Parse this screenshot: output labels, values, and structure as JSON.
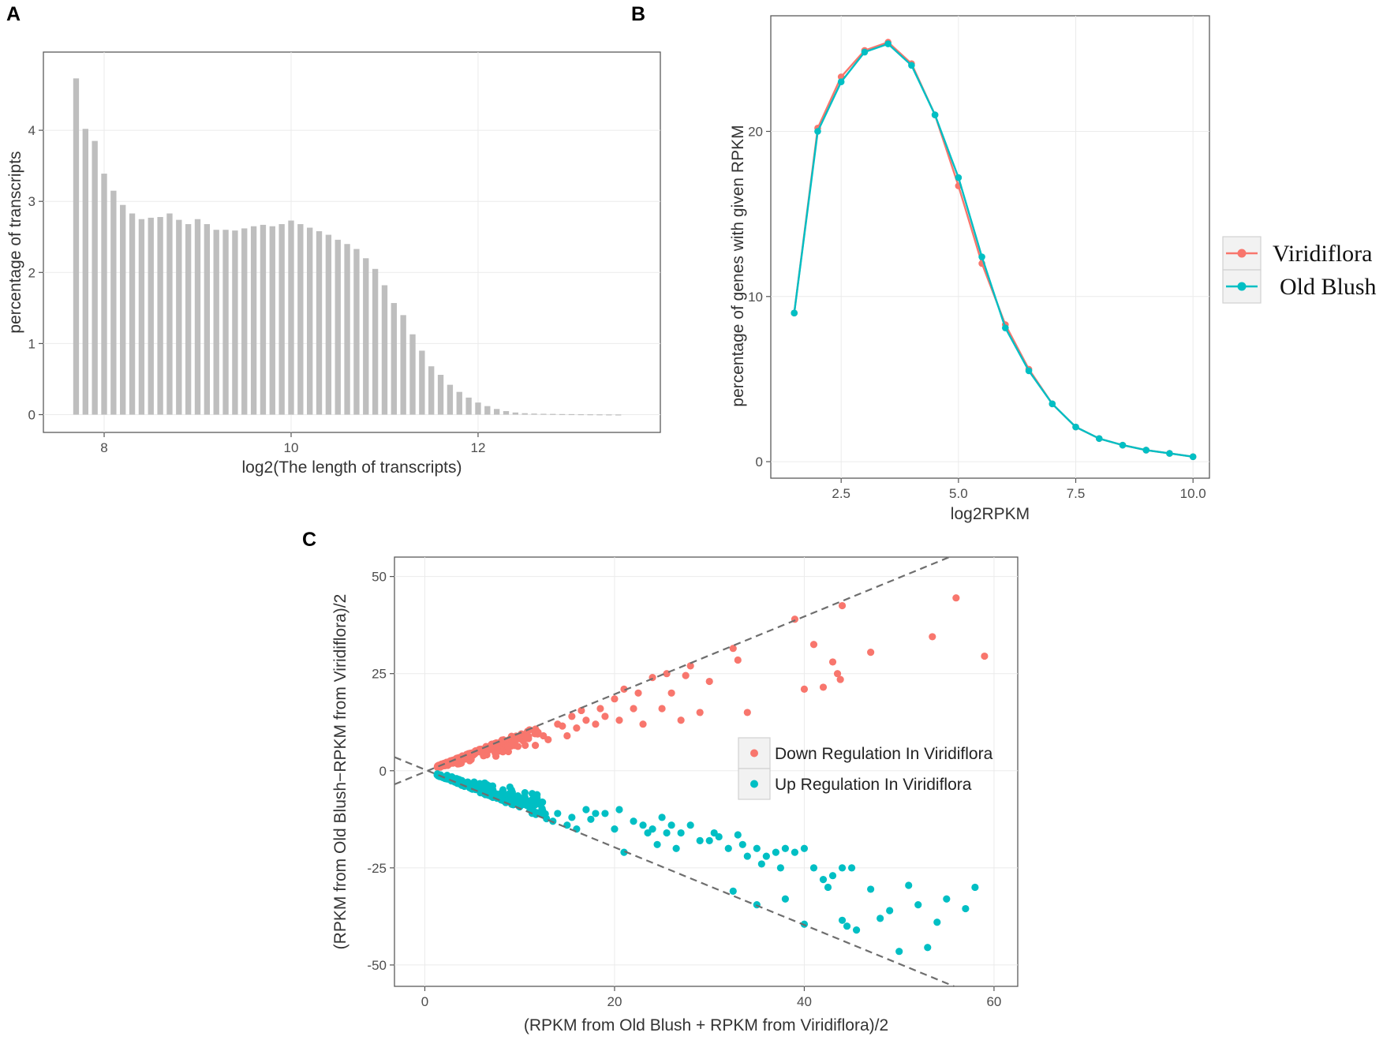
{
  "panels": {
    "a": "A",
    "b": "B",
    "c": "C"
  },
  "chart_data": [
    {
      "panel": "A",
      "type": "bar",
      "xlabel": "log2(The length of transcripts)",
      "ylabel": "percentage of transcripts",
      "xlim": [
        7.35,
        13.95
      ],
      "ylim": [
        -0.25,
        5.1
      ],
      "xticks": [
        8,
        10,
        12
      ],
      "yticks": [
        0,
        1,
        2,
        3,
        4
      ],
      "bar_start": 7.7,
      "bar_step": 0.1,
      "values": [
        4.73,
        4.02,
        3.85,
        3.39,
        3.15,
        2.95,
        2.83,
        2.75,
        2.77,
        2.78,
        2.83,
        2.74,
        2.68,
        2.75,
        2.68,
        2.6,
        2.6,
        2.59,
        2.62,
        2.65,
        2.67,
        2.65,
        2.68,
        2.73,
        2.68,
        2.63,
        2.58,
        2.53,
        2.46,
        2.4,
        2.33,
        2.2,
        2.05,
        1.82,
        1.57,
        1.4,
        1.13,
        0.9,
        0.68,
        0.56,
        0.42,
        0.32,
        0.24,
        0.17,
        0.12,
        0.08,
        0.05,
        0.03,
        0.02,
        0.015,
        0.012,
        0.01,
        0.008,
        0.007,
        0.006,
        0.005,
        0.004,
        0.003,
        0.002
      ]
    },
    {
      "panel": "B",
      "type": "line",
      "xlabel": "log2RPKM",
      "ylabel": "percentage of genes with given RPKM",
      "xlim": [
        1.0,
        10.35
      ],
      "ylim": [
        -1.0,
        27.0
      ],
      "xticks": [
        2.5,
        5.0,
        7.5,
        10.0
      ],
      "xticklabels": [
        "2.5",
        "5.0",
        "7.5",
        "10.0"
      ],
      "yticks": [
        0,
        10,
        20
      ],
      "x": [
        1.5,
        2.0,
        2.5,
        3.0,
        3.5,
        4.0,
        4.5,
        5.0,
        5.5,
        6.0,
        6.5,
        7.0,
        7.5,
        8.0,
        8.5,
        9.0,
        9.5,
        10.0
      ],
      "series": [
        {
          "name": "Viridiflora",
          "color": "#f8766d",
          "values": [
            9.0,
            20.2,
            23.3,
            24.9,
            25.4,
            24.1,
            21.0,
            16.7,
            12.0,
            8.3,
            5.6,
            3.5,
            2.1,
            1.4,
            1.0,
            0.7,
            0.5,
            0.3
          ]
        },
        {
          "name": "Old Blush",
          "color": "#00bfc4",
          "values": [
            9.0,
            20.0,
            23.0,
            24.8,
            25.3,
            24.0,
            21.0,
            17.2,
            12.4,
            8.1,
            5.5,
            3.5,
            2.1,
            1.4,
            1.0,
            0.7,
            0.5,
            0.3
          ]
        }
      ]
    },
    {
      "panel": "C",
      "type": "scatter",
      "xlabel": "(RPKM from Old Blush + RPKM from Viridiflora)/2",
      "ylabel": "(RPKM from Old Blush−RPKM from Viridiflora)/2",
      "xlim": [
        -3.2,
        62.5
      ],
      "ylim": [
        -55.5,
        55.0
      ],
      "xticks": [
        0,
        20,
        40,
        60
      ],
      "yticks": [
        -50,
        -25,
        0,
        25,
        50
      ],
      "reference_lines": [
        {
          "slope": 1,
          "intercept": -0.3,
          "style": "dashed"
        },
        {
          "slope": -1,
          "intercept": 0.3,
          "style": "dashed"
        }
      ],
      "series": [
        {
          "name": "Down Regulation In Viridiflora",
          "color": "#f8766d",
          "cloud": {
            "x_from": 1.3,
            "x_to": 12.0,
            "count": 200,
            "min_ratio": 0.45,
            "max_ratio": 0.97
          },
          "points": [
            [
              12.5,
              9.0
            ],
            [
              13.0,
              8.0
            ],
            [
              14.0,
              12.0
            ],
            [
              14.5,
              11.5
            ],
            [
              15.0,
              9.0
            ],
            [
              15.5,
              14.0
            ],
            [
              16.0,
              11.0
            ],
            [
              16.5,
              15.5
            ],
            [
              17.0,
              13.0
            ],
            [
              18.0,
              12.0
            ],
            [
              18.5,
              16.0
            ],
            [
              19.0,
              14.0
            ],
            [
              20.0,
              18.5
            ],
            [
              20.5,
              13.0
            ],
            [
              21.0,
              21.0
            ],
            [
              22.0,
              16.0
            ],
            [
              22.5,
              20.0
            ],
            [
              23.0,
              12.0
            ],
            [
              24.0,
              24.0
            ],
            [
              25.0,
              16.0
            ],
            [
              25.5,
              25.0
            ],
            [
              26.0,
              20.0
            ],
            [
              27.0,
              13.0
            ],
            [
              27.5,
              24.5
            ],
            [
              28.0,
              27.0
            ],
            [
              29.0,
              15.0
            ],
            [
              30.0,
              23.0
            ],
            [
              32.5,
              31.5
            ],
            [
              33.0,
              28.5
            ],
            [
              34.0,
              15.0
            ],
            [
              39.0,
              39.0
            ],
            [
              40.0,
              21.0
            ],
            [
              41.0,
              32.5
            ],
            [
              42.0,
              21.5
            ],
            [
              43.0,
              28.0
            ],
            [
              43.5,
              25.0
            ],
            [
              44.0,
              42.5
            ],
            [
              43.8,
              23.5
            ],
            [
              47.0,
              30.5
            ],
            [
              53.5,
              34.5
            ],
            [
              56.0,
              44.5
            ],
            [
              59.0,
              29.5
            ]
          ]
        },
        {
          "name": "Up Regulation In Viridiflora",
          "color": "#00bfc4",
          "cloud": {
            "x_from": 1.3,
            "x_to": 13.0,
            "count": 200,
            "min_ratio": 0.45,
            "max_ratio": 0.97
          },
          "points": [
            [
              13.5,
              -13.0
            ],
            [
              14.0,
              -11.0
            ],
            [
              15.0,
              -14.0
            ],
            [
              15.5,
              -12.0
            ],
            [
              16.0,
              -15.0
            ],
            [
              17.0,
              -10.0
            ],
            [
              17.5,
              -12.5
            ],
            [
              18.0,
              -11.0
            ],
            [
              19.0,
              -11.0
            ],
            [
              20.0,
              -15.0
            ],
            [
              20.5,
              -10.0
            ],
            [
              21.0,
              -21.0
            ],
            [
              22.0,
              -13.0
            ],
            [
              23.0,
              -14.0
            ],
            [
              23.5,
              -16.0
            ],
            [
              24.0,
              -15.0
            ],
            [
              24.5,
              -19.0
            ],
            [
              25.0,
              -12.0
            ],
            [
              25.5,
              -16.0
            ],
            [
              26.0,
              -14.0
            ],
            [
              26.5,
              -20.0
            ],
            [
              27.0,
              -16.0
            ],
            [
              28.0,
              -14.0
            ],
            [
              29.0,
              -18.0
            ],
            [
              30.0,
              -18.0
            ],
            [
              30.5,
              -16.0
            ],
            [
              31.0,
              -17.0
            ],
            [
              32.0,
              -20.0
            ],
            [
              33.0,
              -16.5
            ],
            [
              33.5,
              -19.0
            ],
            [
              34.0,
              -22.0
            ],
            [
              35.0,
              -20.0
            ],
            [
              35.5,
              -24.0
            ],
            [
              36.0,
              -22.0
            ],
            [
              37.0,
              -21.0
            ],
            [
              37.5,
              -25.0
            ],
            [
              38.0,
              -20.0
            ],
            [
              39.0,
              -21.0
            ],
            [
              40.0,
              -20.0
            ],
            [
              41.0,
              -25.0
            ],
            [
              42.0,
              -28.0
            ],
            [
              43.0,
              -27.0
            ],
            [
              44.0,
              -25.0
            ],
            [
              45.0,
              -25.0
            ],
            [
              32.5,
              -31.0
            ],
            [
              35.0,
              -34.5
            ],
            [
              38.0,
              -33.0
            ],
            [
              40.0,
              -39.5
            ],
            [
              42.5,
              -30.0
            ],
            [
              44.0,
              -38.5
            ],
            [
              44.5,
              -40.0
            ],
            [
              45.5,
              -41.0
            ],
            [
              47.0,
              -30.5
            ],
            [
              48.0,
              -38.0
            ],
            [
              49.0,
              -36.0
            ],
            [
              50.0,
              -46.5
            ],
            [
              51.0,
              -29.5
            ],
            [
              52.0,
              -34.5
            ],
            [
              53.0,
              -45.5
            ],
            [
              54.0,
              -39.0
            ],
            [
              55.0,
              -33.0
            ],
            [
              57.0,
              -35.5
            ],
            [
              58.0,
              -30.0
            ]
          ]
        }
      ]
    }
  ]
}
